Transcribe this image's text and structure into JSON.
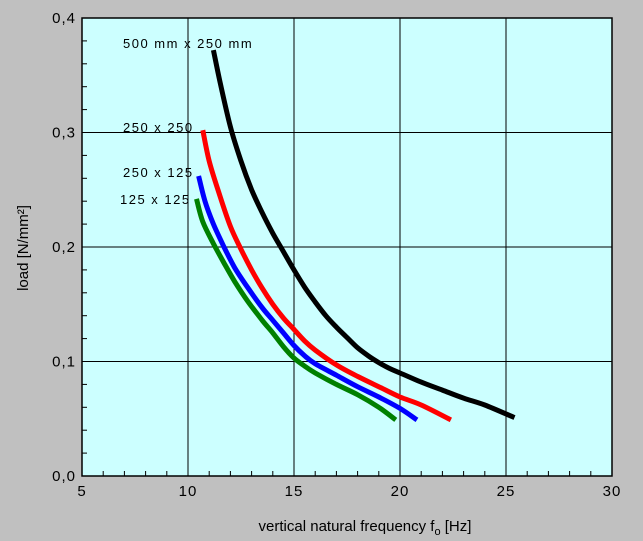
{
  "chart_data": {
    "type": "line",
    "title": "",
    "xlabel": "vertical natural frequency f",
    "xlabel_sub": "o",
    "xlabel_unit": " [Hz]",
    "ylabel": "load  [N/mm²]",
    "xlim": [
      5,
      30
    ],
    "ylim": [
      0.0,
      0.4
    ],
    "x_ticks": [
      5,
      10,
      15,
      20,
      25,
      30
    ],
    "x_tick_labels": [
      "5",
      "10",
      "15",
      "20",
      "25",
      "30"
    ],
    "y_ticks": [
      0.0,
      0.1,
      0.2,
      0.3,
      0.4
    ],
    "y_tick_labels": [
      "0,0",
      "0,1",
      "0,2",
      "0,3",
      "0,4"
    ],
    "grid": true,
    "plot_background": "#ccffff",
    "series": [
      {
        "name": "500 mm x 250 mm",
        "color": "#000000",
        "x": [
          11.2,
          11.5,
          12.0,
          12.5,
          13.0,
          13.5,
          14.0,
          14.5,
          15.0,
          15.5,
          16.0,
          16.5,
          17.0,
          17.5,
          18.0,
          18.5,
          19.0,
          19.5,
          20.0,
          21.0,
          22.0,
          23.0,
          24.0,
          25.4
        ],
        "y": [
          0.372,
          0.345,
          0.305,
          0.275,
          0.25,
          0.23,
          0.212,
          0.196,
          0.18,
          0.165,
          0.152,
          0.14,
          0.13,
          0.121,
          0.112,
          0.105,
          0.099,
          0.094,
          0.09,
          0.082,
          0.075,
          0.068,
          0.062,
          0.051
        ]
      },
      {
        "name": "250 x 250",
        "color": "#ff0000",
        "x": [
          10.7,
          11.0,
          11.5,
          12.0,
          12.5,
          13.0,
          13.5,
          14.0,
          14.5,
          15.0,
          15.5,
          16.0,
          17.0,
          18.0,
          19.0,
          20.0,
          21.0,
          22.4
        ],
        "y": [
          0.302,
          0.275,
          0.245,
          0.218,
          0.198,
          0.18,
          0.164,
          0.15,
          0.138,
          0.128,
          0.118,
          0.11,
          0.097,
          0.087,
          0.078,
          0.069,
          0.062,
          0.049
        ]
      },
      {
        "name": "250 x 125",
        "color": "#0000ff",
        "x": [
          10.5,
          10.8,
          11.2,
          11.7,
          12.2,
          12.8,
          13.5,
          14.0,
          14.5,
          15.0,
          15.5,
          16.0,
          17.0,
          18.0,
          19.0,
          20.0,
          20.8
        ],
        "y": [
          0.262,
          0.24,
          0.22,
          0.2,
          0.182,
          0.165,
          0.147,
          0.136,
          0.125,
          0.114,
          0.105,
          0.098,
          0.088,
          0.078,
          0.069,
          0.059,
          0.049
        ]
      },
      {
        "name": "125 x 125",
        "color": "#008000",
        "x": [
          10.4,
          10.7,
          11.2,
          11.7,
          12.2,
          12.8,
          13.5,
          14.0,
          14.5,
          15.0,
          15.5,
          16.0,
          17.0,
          18.0,
          19.0,
          19.8
        ],
        "y": [
          0.242,
          0.222,
          0.203,
          0.186,
          0.17,
          0.153,
          0.136,
          0.125,
          0.113,
          0.103,
          0.096,
          0.09,
          0.08,
          0.071,
          0.06,
          0.049
        ]
      }
    ],
    "annotations": [
      {
        "text": "500 mm x 250 mm"
      },
      {
        "text": "250 x 250"
      },
      {
        "text": "250 x 125"
      },
      {
        "text": "125 x 125"
      }
    ]
  }
}
